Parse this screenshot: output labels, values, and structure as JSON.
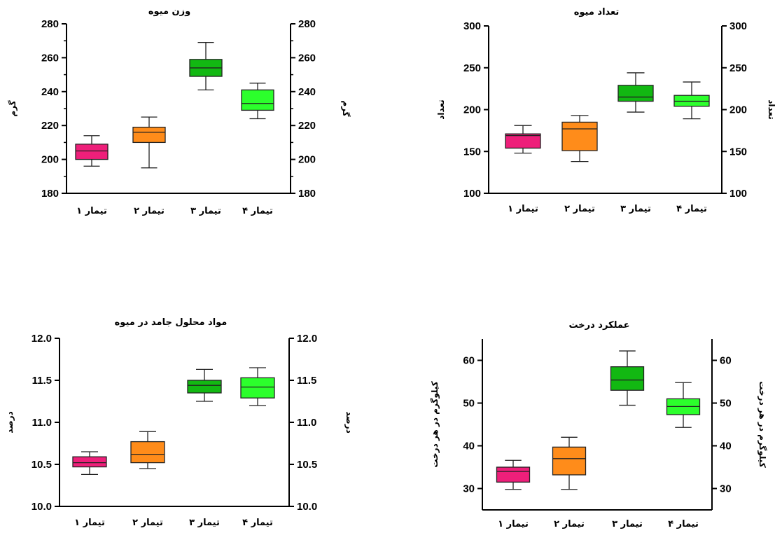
{
  "chart_data": [
    {
      "type": "box",
      "title": "وزن میوه",
      "ylabel": "گرم",
      "ylabel_right": "گرم",
      "categories": [
        "تیمار ۱",
        "تیمار ۲",
        "تیمار ۳",
        "تیمار ۴"
      ],
      "ylim": [
        180,
        280
      ],
      "yticks": [
        "180",
        "200",
        "220",
        "240",
        "260",
        "280"
      ],
      "colors": [
        "#ee1f7a",
        "#ff8c1a",
        "#12b812",
        "#2cff2c"
      ],
      "boxes": [
        {
          "min": 196,
          "q1": 200,
          "median": 205,
          "q3": 209,
          "max": 214
        },
        {
          "min": 195,
          "q1": 210,
          "median": 216,
          "q3": 219,
          "max": 225
        },
        {
          "min": 241,
          "q1": 249,
          "median": 254,
          "q3": 259,
          "max": 269
        },
        {
          "min": 224,
          "q1": 229,
          "median": 233,
          "q3": 241,
          "max": 245
        }
      ]
    },
    {
      "type": "box",
      "title": "تعداد میوه",
      "ylabel": "تعداد",
      "ylabel_right": "تعداد",
      "categories": [
        "تیمار ۱",
        "تیمار ۲",
        "تیمار ۳",
        "تیمار ۴"
      ],
      "ylim": [
        100,
        300
      ],
      "yticks": [
        "100",
        "150",
        "200",
        "250",
        "300"
      ],
      "colors": [
        "#ee1f7a",
        "#ff8c1a",
        "#12b812",
        "#2cff2c"
      ],
      "boxes": [
        {
          "min": 148,
          "q1": 154,
          "median": 169,
          "q3": 171,
          "max": 181
        },
        {
          "min": 138,
          "q1": 151,
          "median": 177,
          "q3": 185,
          "max": 193
        },
        {
          "min": 197,
          "q1": 210,
          "median": 215,
          "q3": 229,
          "max": 244
        },
        {
          "min": 189,
          "q1": 204,
          "median": 210,
          "q3": 217,
          "max": 233
        }
      ]
    },
    {
      "type": "box",
      "title": "مواد محلول جامد در میوه",
      "ylabel": "درصد",
      "ylabel_right": "درصد",
      "categories": [
        "تیمار ۱",
        "تیمار ۲",
        "تیمار ۳",
        "تیمار ۴"
      ],
      "ylim": [
        10.0,
        12.0
      ],
      "yticks": [
        "10.0",
        "10.5",
        "11.0",
        "11.5",
        "12.0"
      ],
      "colors": [
        "#ee1f7a",
        "#ff8c1a",
        "#12b812",
        "#2cff2c"
      ],
      "boxes": [
        {
          "min": 10.38,
          "q1": 10.47,
          "median": 10.52,
          "q3": 10.59,
          "max": 10.65
        },
        {
          "min": 10.45,
          "q1": 10.52,
          "median": 10.62,
          "q3": 10.77,
          "max": 10.89
        },
        {
          "min": 11.25,
          "q1": 11.35,
          "median": 11.44,
          "q3": 11.5,
          "max": 11.63
        },
        {
          "min": 11.2,
          "q1": 11.29,
          "median": 11.42,
          "q3": 11.53,
          "max": 11.65
        }
      ]
    },
    {
      "type": "box",
      "title": "عملکرد درخت",
      "ylabel": "کیلوگرم در هر درخت",
      "ylabel_right": "کیلوگرم در هر درخت",
      "categories": [
        "تیمار ۱",
        "تیمار ۲",
        "تیمار ۳",
        "تیمار ۴"
      ],
      "ylim": [
        25,
        65
      ],
      "yticks": [
        "30",
        "40",
        "50",
        "60"
      ],
      "colors": [
        "#ee1f7a",
        "#ff8c1a",
        "#12b812",
        "#2cff2c"
      ],
      "boxes": [
        {
          "min": 29.8,
          "q1": 31.5,
          "median": 34.0,
          "q3": 35.0,
          "max": 36.6
        },
        {
          "min": 29.8,
          "q1": 33.2,
          "median": 37.0,
          "q3": 39.7,
          "max": 42.0
        },
        {
          "min": 49.5,
          "q1": 53.0,
          "median": 55.4,
          "q3": 58.5,
          "max": 62.2
        },
        {
          "min": 44.3,
          "q1": 47.3,
          "median": 49.2,
          "q3": 51.0,
          "max": 54.8
        }
      ]
    }
  ]
}
